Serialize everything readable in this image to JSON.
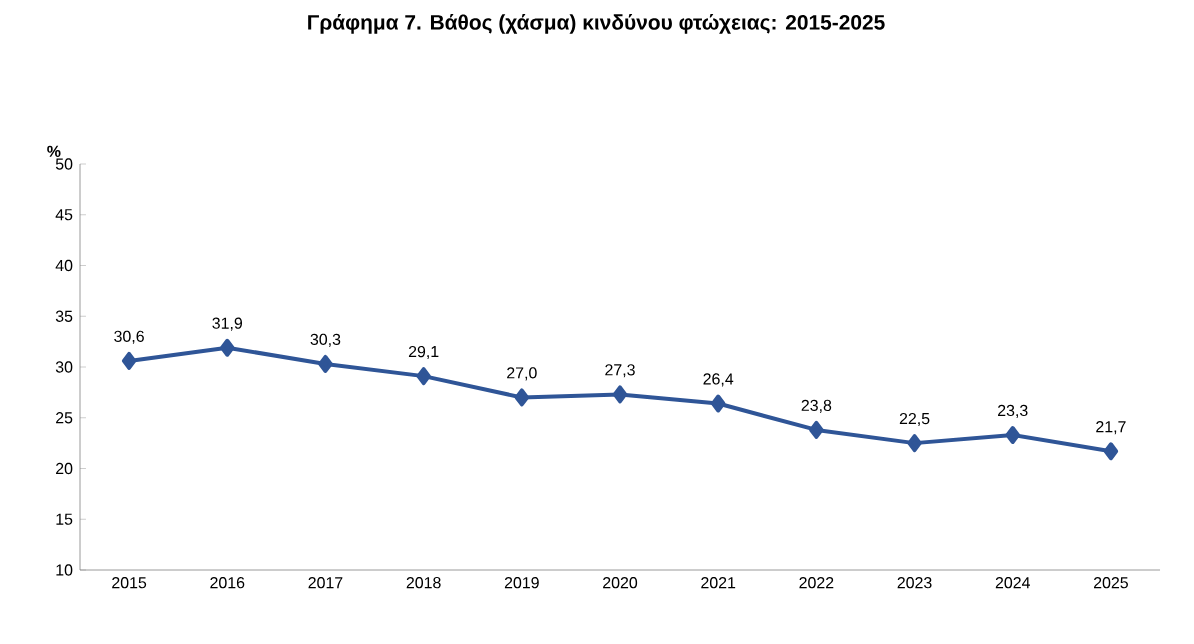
{
  "chart_data": {
    "type": "line",
    "title": "Γράφημα 7. Βάθος (χάσμα) κινδύνου φτώχειας: 2015-2025",
    "ylabel": "%",
    "categories": [
      "2015",
      "2016",
      "2017",
      "2018",
      "2019",
      "2020",
      "2021",
      "2022",
      "2023",
      "2024",
      "2025"
    ],
    "series": [
      {
        "color": "#2f5597",
        "values": [
          30.6,
          31.9,
          30.3,
          29.1,
          27.0,
          27.3,
          26.4,
          23.8,
          22.5,
          23.3,
          21.7
        ],
        "value_labels": [
          "30,6",
          "31,9",
          "30,3",
          "29,1",
          "27,0",
          "27,3",
          "26,4",
          "23,8",
          "22,5",
          "23,3",
          "21,7"
        ]
      }
    ],
    "ylim": [
      10,
      50
    ],
    "yticks": [
      10,
      15,
      20,
      25,
      30,
      35,
      40,
      45,
      50
    ],
    "marker": "diamond",
    "line_style": "solid",
    "grid": false
  }
}
